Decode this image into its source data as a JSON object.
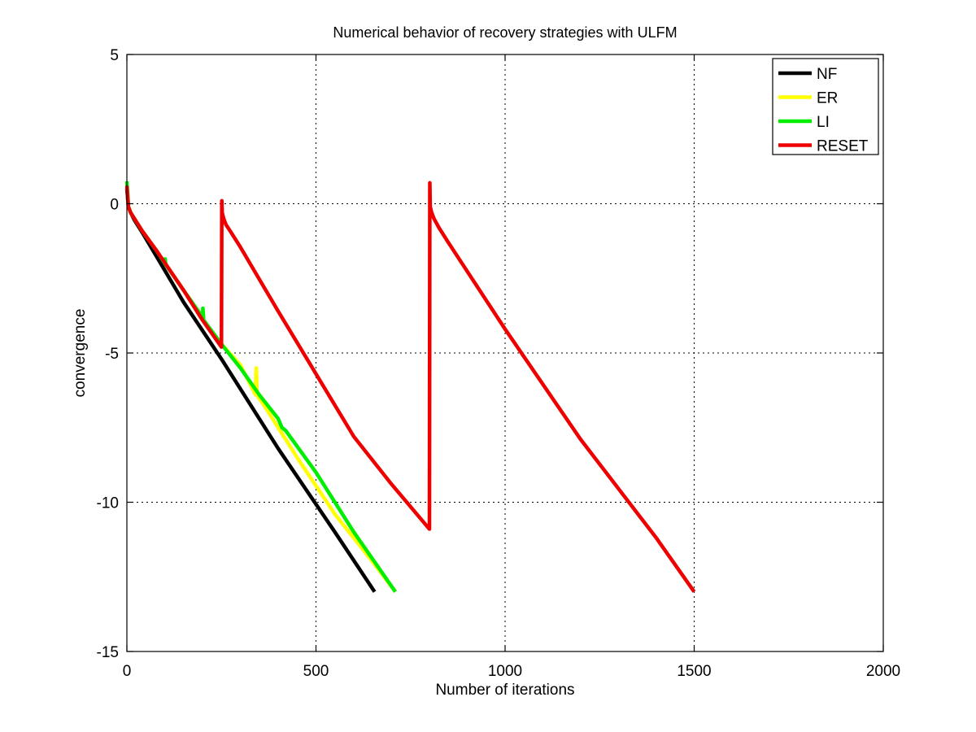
{
  "chart_data": {
    "type": "line",
    "title": "Numerical behavior of recovery strategies with ULFM",
    "xlabel": "Number of iterations",
    "ylabel": "convergence",
    "xlim": [
      0,
      2000
    ],
    "ylim": [
      -15,
      5
    ],
    "xticks": [
      0,
      500,
      1000,
      1500,
      2000
    ],
    "yticks": [
      5,
      0,
      -5,
      -10,
      -15
    ],
    "xtick_labels": [
      "0",
      "500",
      "1000",
      "1500",
      "2000"
    ],
    "ytick_labels": [
      "5",
      "0",
      "-5",
      "-10",
      "-15"
    ],
    "grid": true,
    "legend_position": "top-right",
    "series": [
      {
        "name": "NF",
        "color": "#000000",
        "x": [
          0,
          4,
          10,
          20,
          40,
          80,
          150,
          250,
          400,
          550,
          655
        ],
        "y": [
          0.5,
          -0.1,
          -0.3,
          -0.55,
          -0.95,
          -1.8,
          -3.3,
          -5.2,
          -8.2,
          -11.0,
          -13.0
        ]
      },
      {
        "name": "ER",
        "color": "#ffff00",
        "x": [
          0,
          4,
          10,
          20,
          40,
          80,
          150,
          200,
          250,
          300,
          340,
          342,
          344,
          348,
          360,
          450,
          550,
          650,
          710
        ],
        "y": [
          0.7,
          -0.1,
          -0.3,
          -0.5,
          -0.9,
          -1.6,
          -2.9,
          -3.9,
          -4.7,
          -5.4,
          -6.4,
          -5.5,
          -6.3,
          -6.5,
          -6.7,
          -8.5,
          -10.4,
          -12.0,
          -13.0
        ]
      },
      {
        "name": "LI",
        "color": "#00ee00",
        "x": [
          0,
          4,
          10,
          20,
          40,
          80,
          100,
          101,
          103,
          150,
          200,
          201,
          203,
          250,
          300,
          350,
          400,
          410,
          420,
          500,
          600,
          710
        ],
        "y": [
          0.75,
          -0.1,
          -0.3,
          -0.5,
          -0.9,
          -1.6,
          -2.0,
          -1.85,
          -2.05,
          -2.9,
          -3.8,
          -3.5,
          -3.9,
          -4.7,
          -5.5,
          -6.4,
          -7.2,
          -7.5,
          -7.6,
          -9.0,
          -11.0,
          -13.0
        ]
      },
      {
        "name": "RESET",
        "color": "#ee0000",
        "x": [
          0,
          4,
          10,
          20,
          40,
          80,
          150,
          200,
          250,
          251,
          252,
          256,
          262,
          275,
          300,
          400,
          500,
          600,
          700,
          800,
          801,
          802,
          806,
          812,
          825,
          850,
          1000,
          1200,
          1400,
          1500
        ],
        "y": [
          0.6,
          -0.1,
          -0.3,
          -0.5,
          -0.9,
          -1.6,
          -2.9,
          -3.9,
          -4.8,
          0.1,
          -0.3,
          -0.5,
          -0.7,
          -0.95,
          -1.45,
          -3.6,
          -5.7,
          -7.8,
          -9.4,
          -10.9,
          0.7,
          -0.1,
          -0.3,
          -0.5,
          -0.8,
          -1.3,
          -4.2,
          -7.9,
          -11.2,
          -13.0
        ]
      }
    ]
  }
}
